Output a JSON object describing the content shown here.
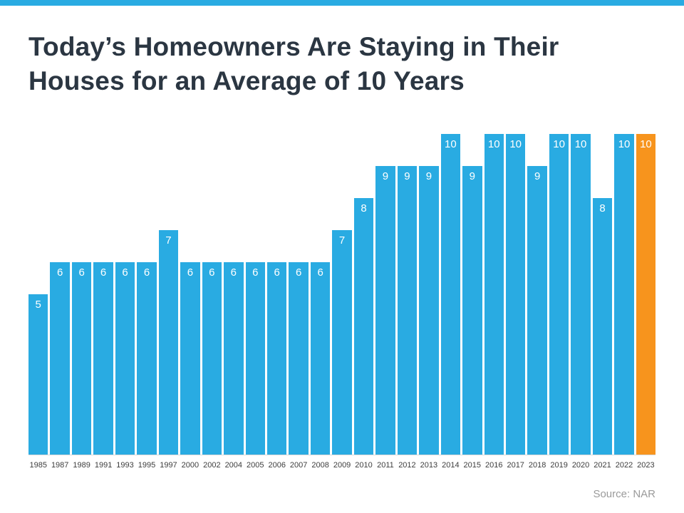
{
  "page": {
    "title_line1": "Today’s Homeowners Are Staying in Their",
    "title_line2": "Houses for an Average of 10 Years",
    "source": "Source: NAR"
  },
  "chart_data": {
    "type": "bar",
    "title": "Today’s Homeowners Are Staying in Their Houses for an Average of 10 Years",
    "categories": [
      "1985",
      "1987",
      "1989",
      "1991",
      "1993",
      "1995",
      "1997",
      "2000",
      "2002",
      "2004",
      "2005",
      "2006",
      "2007",
      "2008",
      "2009",
      "2010",
      "2011",
      "2012",
      "2013",
      "2014",
      "2015",
      "2016",
      "2017",
      "2018",
      "2019",
      "2020",
      "2021",
      "2022",
      "2023"
    ],
    "values": [
      5,
      6,
      6,
      6,
      6,
      6,
      7,
      6,
      6,
      6,
      6,
      6,
      6,
      6,
      7,
      8,
      9,
      9,
      9,
      10,
      9,
      10,
      10,
      9,
      10,
      10,
      8,
      10,
      10
    ],
    "xlabel": "",
    "ylabel": "",
    "ylim": [
      0,
      10
    ],
    "grid": false,
    "legend_position": "none",
    "value_labels": "inside-top",
    "bar_color": "#29ABE2",
    "highlight_color": "#F7941D",
    "highlight_index": 28,
    "annotation": "Source: NAR"
  },
  "colors": {
    "accent_bar": "#29ABE2",
    "title_text": "#2B3642",
    "axis_label_text": "#3d3d3d",
    "source_text": "#9A9A9A",
    "value_label_text": "#ffffff"
  }
}
